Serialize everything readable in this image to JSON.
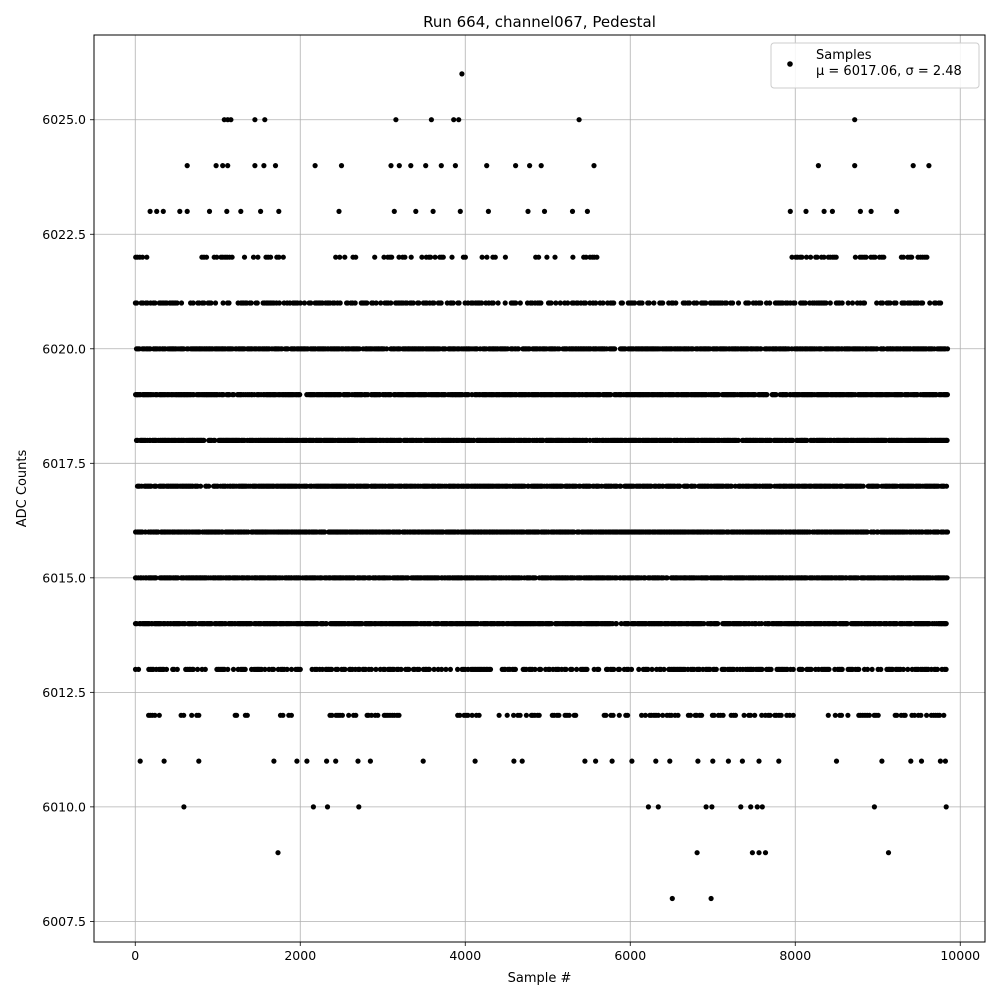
{
  "chart_data": {
    "type": "scatter",
    "title": "Run 664, channel067, Pedestal",
    "xlabel": "Sample #",
    "ylabel": "ADC Counts",
    "xlim": [
      -500,
      10300
    ],
    "ylim": [
      6007.05,
      6026.85
    ],
    "xticks": [
      0,
      2000,
      4000,
      6000,
      8000,
      10000
    ],
    "yticks": [
      6007.5,
      6010.0,
      6012.5,
      6015.0,
      6017.5,
      6020.0,
      6022.5,
      6025.0
    ],
    "grid": true,
    "legend_position": "top-right",
    "series": [
      {
        "name": "Samples",
        "legend_label": "Samples",
        "legend_stats": "μ = 6017.06, σ = 2.48",
        "color": "#000000",
        "n_samples": 9840,
        "x_max": 9840,
        "level_min": 6008,
        "level_max": 6026,
        "dense_levels": [
          6014,
          6015,
          6016,
          6017,
          6018,
          6019,
          6020,
          6021,
          6013
        ],
        "points": [
          {
            "x": 3960,
            "y": 6026
          },
          {
            "x": 1080,
            "y": 6025
          },
          {
            "x": 1120,
            "y": 6025
          },
          {
            "x": 1160,
            "y": 6025
          },
          {
            "x": 1450,
            "y": 6025
          },
          {
            "x": 1570,
            "y": 6025
          },
          {
            "x": 3160,
            "y": 6025
          },
          {
            "x": 3590,
            "y": 6025
          },
          {
            "x": 3860,
            "y": 6025
          },
          {
            "x": 3920,
            "y": 6025
          },
          {
            "x": 5380,
            "y": 6025
          },
          {
            "x": 8720,
            "y": 6025
          },
          {
            "x": 630,
            "y": 6024
          },
          {
            "x": 980,
            "y": 6024
          },
          {
            "x": 1060,
            "y": 6024
          },
          {
            "x": 1120,
            "y": 6024
          },
          {
            "x": 1450,
            "y": 6024
          },
          {
            "x": 1560,
            "y": 6024
          },
          {
            "x": 1700,
            "y": 6024
          },
          {
            "x": 2180,
            "y": 6024
          },
          {
            "x": 2500,
            "y": 6024
          },
          {
            "x": 3100,
            "y": 6024
          },
          {
            "x": 3200,
            "y": 6024
          },
          {
            "x": 3340,
            "y": 6024
          },
          {
            "x": 3520,
            "y": 6024
          },
          {
            "x": 3710,
            "y": 6024
          },
          {
            "x": 3880,
            "y": 6024
          },
          {
            "x": 4260,
            "y": 6024
          },
          {
            "x": 4610,
            "y": 6024
          },
          {
            "x": 4780,
            "y": 6024
          },
          {
            "x": 4920,
            "y": 6024
          },
          {
            "x": 5560,
            "y": 6024
          },
          {
            "x": 8280,
            "y": 6024
          },
          {
            "x": 8720,
            "y": 6024
          },
          {
            "x": 9430,
            "y": 6024
          },
          {
            "x": 9620,
            "y": 6024
          },
          {
            "x": 180,
            "y": 6023
          },
          {
            "x": 260,
            "y": 6023
          },
          {
            "x": 340,
            "y": 6023
          },
          {
            "x": 540,
            "y": 6023
          },
          {
            "x": 630,
            "y": 6023
          },
          {
            "x": 900,
            "y": 6023
          },
          {
            "x": 1110,
            "y": 6023
          },
          {
            "x": 1280,
            "y": 6023
          },
          {
            "x": 1520,
            "y": 6023
          },
          {
            "x": 1740,
            "y": 6023
          },
          {
            "x": 2470,
            "y": 6023
          },
          {
            "x": 3140,
            "y": 6023
          },
          {
            "x": 3400,
            "y": 6023
          },
          {
            "x": 3610,
            "y": 6023
          },
          {
            "x": 3940,
            "y": 6023
          },
          {
            "x": 4280,
            "y": 6023
          },
          {
            "x": 4760,
            "y": 6023
          },
          {
            "x": 4960,
            "y": 6023
          },
          {
            "x": 5300,
            "y": 6023
          },
          {
            "x": 5480,
            "y": 6023
          },
          {
            "x": 7940,
            "y": 6023
          },
          {
            "x": 8130,
            "y": 6023
          },
          {
            "x": 8350,
            "y": 6023
          },
          {
            "x": 8450,
            "y": 6023
          },
          {
            "x": 8790,
            "y": 6023
          },
          {
            "x": 8920,
            "y": 6023
          },
          {
            "x": 9230,
            "y": 6023
          },
          {
            "x": 60,
            "y": 6011
          },
          {
            "x": 350,
            "y": 6011
          },
          {
            "x": 770,
            "y": 6011
          },
          {
            "x": 1680,
            "y": 6011
          },
          {
            "x": 1960,
            "y": 6011
          },
          {
            "x": 2080,
            "y": 6011
          },
          {
            "x": 2320,
            "y": 6011
          },
          {
            "x": 2430,
            "y": 6011
          },
          {
            "x": 2700,
            "y": 6011
          },
          {
            "x": 2850,
            "y": 6011
          },
          {
            "x": 3490,
            "y": 6011
          },
          {
            "x": 4120,
            "y": 6011
          },
          {
            "x": 4590,
            "y": 6011
          },
          {
            "x": 4690,
            "y": 6011
          },
          {
            "x": 5450,
            "y": 6011
          },
          {
            "x": 5580,
            "y": 6011
          },
          {
            "x": 5780,
            "y": 6011
          },
          {
            "x": 6020,
            "y": 6011
          },
          {
            "x": 6310,
            "y": 6011
          },
          {
            "x": 6480,
            "y": 6011
          },
          {
            "x": 6820,
            "y": 6011
          },
          {
            "x": 7000,
            "y": 6011
          },
          {
            "x": 7190,
            "y": 6011
          },
          {
            "x": 7360,
            "y": 6011
          },
          {
            "x": 7560,
            "y": 6011
          },
          {
            "x": 7800,
            "y": 6011
          },
          {
            "x": 8500,
            "y": 6011
          },
          {
            "x": 9050,
            "y": 6011
          },
          {
            "x": 9400,
            "y": 6011
          },
          {
            "x": 9530,
            "y": 6011
          },
          {
            "x": 9760,
            "y": 6011
          },
          {
            "x": 9820,
            "y": 6011
          },
          {
            "x": 590,
            "y": 6010
          },
          {
            "x": 2160,
            "y": 6010
          },
          {
            "x": 2330,
            "y": 6010
          },
          {
            "x": 2710,
            "y": 6010
          },
          {
            "x": 6220,
            "y": 6010
          },
          {
            "x": 6340,
            "y": 6010
          },
          {
            "x": 6920,
            "y": 6010
          },
          {
            "x": 6990,
            "y": 6010
          },
          {
            "x": 7340,
            "y": 6010
          },
          {
            "x": 7460,
            "y": 6010
          },
          {
            "x": 7540,
            "y": 6010
          },
          {
            "x": 7600,
            "y": 6010
          },
          {
            "x": 8960,
            "y": 6010
          },
          {
            "x": 9830,
            "y": 6010
          },
          {
            "x": 1730,
            "y": 6009
          },
          {
            "x": 6810,
            "y": 6009
          },
          {
            "x": 7480,
            "y": 6009
          },
          {
            "x": 7560,
            "y": 6009
          },
          {
            "x": 7640,
            "y": 6009
          },
          {
            "x": 9130,
            "y": 6009
          },
          {
            "x": 6510,
            "y": 6008
          },
          {
            "x": 6980,
            "y": 6008
          }
        ],
        "sparse_levels": [
          {
            "y": 6022,
            "ranges": [
              [
                0,
                200
              ],
              [
                400,
                450
              ],
              [
                800,
                1800
              ],
              [
                2400,
                2700
              ],
              [
                2900,
                4000
              ],
              [
                4200,
                4500
              ],
              [
                4800,
                5100
              ],
              [
                5300,
                5600
              ],
              [
                7950,
                8500
              ],
              [
                8700,
                9100
              ],
              [
                9200,
                9600
              ]
            ]
          },
          {
            "y": 6012,
            "ranges": [
              [
                50,
                300
              ],
              [
                450,
                900
              ],
              [
                1200,
                1400
              ],
              [
                1700,
                2000
              ],
              [
                2300,
                2700
              ],
              [
                2800,
                3200
              ],
              [
                3900,
                4200
              ],
              [
                4400,
                4900
              ],
              [
                5050,
                5400
              ],
              [
                5600,
                6000
              ],
              [
                6100,
                6600
              ],
              [
                6700,
                8000
              ],
              [
                8400,
                9000
              ],
              [
                9200,
                9850
              ]
            ]
          }
        ]
      }
    ]
  }
}
